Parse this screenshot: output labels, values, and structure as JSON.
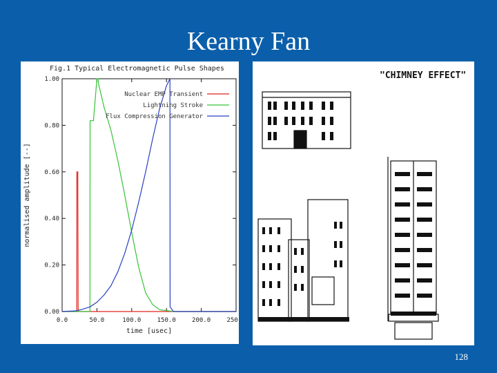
{
  "slide": {
    "title": "Kearny Fan",
    "page_number": "128"
  },
  "colors": {
    "background": "#0b5faa",
    "nuclear": "#e0201c",
    "lightning": "#36c236",
    "flux": "#2a3fc0"
  },
  "chart_data": {
    "type": "line",
    "title": "Fig.1 Typical Electromagnetic Pulse Shapes",
    "xlabel": "time [usec]",
    "ylabel": "normalised amplitude [--]",
    "xlim": [
      0,
      250
    ],
    "ylim": [
      0,
      1
    ],
    "x_ticks": [
      "0.0",
      "50.0",
      "100.0",
      "150.0",
      "200.0",
      "250.0"
    ],
    "y_ticks": [
      "0.00",
      "0.20",
      "0.40",
      "0.60",
      "0.80",
      "1.00"
    ],
    "x_tick_values": [
      0,
      50,
      100,
      150,
      200,
      250
    ],
    "y_tick_values": [
      0,
      0.2,
      0.4,
      0.6,
      0.8,
      1.0
    ],
    "legend_position": "top-right",
    "grid": false,
    "series": [
      {
        "name": "Nuclear EMP Transient",
        "color": "#e0201c",
        "x": [
          0,
          21,
          21.2,
          22.5,
          23,
          23.2,
          250
        ],
        "y": [
          0,
          0,
          0.6,
          0.6,
          0.02,
          0,
          0
        ]
      },
      {
        "name": "Lightning Stroke",
        "color": "#36c236",
        "x": [
          0,
          40,
          40.2,
          45,
          50,
          52,
          52.2,
          60,
          70,
          80,
          90,
          100,
          110,
          120,
          130,
          140,
          160,
          250
        ],
        "y": [
          0,
          0,
          0.82,
          0.82,
          1.0,
          1.0,
          0.98,
          0.88,
          0.78,
          0.65,
          0.5,
          0.34,
          0.19,
          0.08,
          0.03,
          0.008,
          0,
          0
        ]
      },
      {
        "name": "Flux Compression Generator",
        "color": "#2a3fc0",
        "x": [
          0,
          20,
          30,
          40,
          50,
          60,
          70,
          80,
          90,
          100,
          110,
          120,
          130,
          140,
          150,
          155,
          155.2,
          160,
          250
        ],
        "y": [
          0,
          0.003,
          0.01,
          0.02,
          0.04,
          0.07,
          0.11,
          0.17,
          0.25,
          0.35,
          0.47,
          0.6,
          0.74,
          0.87,
          0.97,
          1.0,
          0.02,
          0,
          0
        ]
      }
    ]
  },
  "illustration": {
    "caption": "\"CHIMNEY EFFECT\""
  }
}
